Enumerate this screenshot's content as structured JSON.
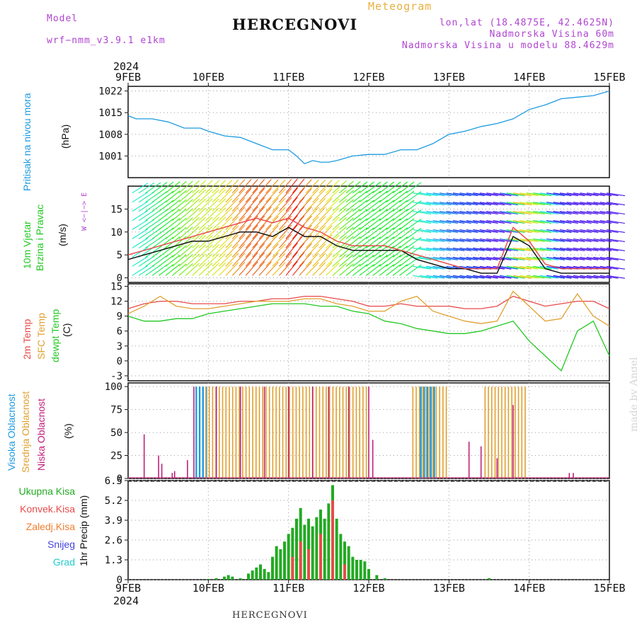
{
  "header": {
    "model_label": "Model",
    "model_value": "wrf−nmm_v3.9.1  e1km",
    "station": "HERCEGNOVI",
    "meteogram": "Meteogram",
    "lonlat": "lon,lat (18.4875E, 42.4625N)",
    "altitude": "Nadmorska Visina 60m",
    "model_altitude": "Nadmorska Visina u modelu 88.4629m",
    "footer_station": "HERCEGNOVI",
    "watermark": "made by Angel"
  },
  "colors": {
    "pressure": "#1e9be0",
    "temp2m": "#e84a4a",
    "sfc": "#e0a030",
    "dew": "#22c822",
    "high_cloud": "#1e9be0",
    "mid_cloud": "#e0a030",
    "low_cloud": "#c0207a",
    "rain_total": "#22aa22",
    "rain_conv": "#e84a4a",
    "rain_frozen": "#f08030",
    "snow": "#4444dd",
    "hail": "#22cccc"
  },
  "chart_data": {
    "type": "line",
    "x_axis": {
      "year": "2024",
      "ticks": [
        "9FEB",
        "10FEB",
        "11FEB",
        "12FEB",
        "13FEB",
        "14FEB",
        "15FEB"
      ],
      "range_days": [
        0,
        6
      ]
    },
    "panels": [
      {
        "id": "pressure",
        "type": "line",
        "ylabel_main": "Pritisak na nivou mora",
        "ylabel_unit": "(hPa)",
        "ylim": [
          994,
          1023.5
        ],
        "yticks": [
          "1001",
          "1008",
          "1015",
          "1022"
        ],
        "ytick_values": [
          1001,
          1008,
          1015,
          1022
        ],
        "series": [
          {
            "x": [
              0,
              0.1,
              0.3,
              0.5,
              0.7,
              0.9,
              1.0,
              1.2,
              1.4,
              1.6,
              1.8,
              2.0,
              2.1,
              2.2,
              2.3,
              2.4,
              2.5,
              2.6,
              2.8,
              3.0,
              3.2,
              3.4,
              3.6,
              3.8,
              4.0,
              4.2,
              4.4,
              4.6,
              4.8,
              5.0,
              5.2,
              5.4,
              5.6,
              5.8,
              6.0
            ],
            "y": [
              1014,
              1013,
              1013,
              1012,
              1010,
              1010,
              1009,
              1007.5,
              1007,
              1005,
              1003,
              1003,
              1001,
              998.5,
              999.5,
              999,
              999,
              999.5,
              1001,
              1001.5,
              1001.5,
              1003,
              1003,
              1005,
              1008,
              1009,
              1010.5,
              1011.5,
              1013,
              1016,
              1017.5,
              1019.5,
              1020,
              1020.5,
              1022
            ]
          }
        ]
      },
      {
        "id": "wind",
        "type": "line",
        "ylabel_main": "10m Vjetar",
        "ylabel_sub": "Brzina i Pravac",
        "ylabel_unit": "(m/s)",
        "compass": "W <−|−> E",
        "ylim": [
          -1,
          20
        ],
        "yticks": [
          "0",
          "5",
          "10",
          "15"
        ],
        "ytick_values": [
          0,
          5,
          10,
          15
        ],
        "series": [
          {
            "name": "speed",
            "x": [
              0,
              0.2,
              0.4,
              0.6,
              0.8,
              1.0,
              1.2,
              1.4,
              1.6,
              1.8,
              2.0,
              2.2,
              2.4,
              2.6,
              2.8,
              3.0,
              3.2,
              3.4,
              3.6,
              3.8,
              4.0,
              4.2,
              4.4,
              4.6,
              4.8,
              5.0,
              5.2,
              5.4,
              5.6,
              5.8,
              6.0
            ],
            "y": [
              4,
              5,
              6,
              7,
              8,
              8,
              9,
              10,
              10,
              9,
              11,
              9,
              9,
              7,
              6,
              6,
              6,
              6,
              4,
              3,
              2,
              2,
              1,
              1,
              9,
              7,
              2,
              1,
              1,
              1,
              1
            ]
          },
          {
            "name": "gust",
            "x": [
              0,
              0.2,
              0.4,
              0.6,
              0.8,
              1.0,
              1.2,
              1.4,
              1.6,
              1.8,
              2.0,
              2.2,
              2.4,
              2.6,
              2.8,
              3.0,
              3.2,
              3.4,
              3.6,
              3.8,
              4.0,
              4.2,
              4.4,
              4.6,
              4.8,
              5.0,
              5.2,
              5.4,
              5.6,
              5.8,
              6.0
            ],
            "y": [
              5,
              6,
              7,
              8,
              9,
              10,
              11,
              12,
              13,
              12,
              13,
              11,
              10,
              8,
              7,
              7,
              7,
              6,
              5,
              4,
              3,
              2,
              2,
              2,
              11,
              8,
              3,
              2,
              2,
              2,
              2
            ]
          }
        ]
      },
      {
        "id": "temperature",
        "type": "line",
        "ylabel_lines": [
          "2m Temp",
          "SFC Temp",
          "dewpt Temp"
        ],
        "ylabel_unit": "(C)",
        "ylim": [
          -4,
          15.5
        ],
        "yticks": [
          "-3",
          "0",
          "3",
          "6",
          "9",
          "12",
          "15"
        ],
        "ytick_values": [
          -3,
          0,
          3,
          6,
          9,
          12,
          15
        ],
        "series": [
          {
            "name": "2m Temp",
            "x": [
              0,
              0.2,
              0.4,
              0.6,
              0.8,
              1.0,
              1.2,
              1.4,
              1.6,
              1.8,
              2.0,
              2.2,
              2.4,
              2.6,
              2.8,
              3.0,
              3.2,
              3.4,
              3.6,
              3.8,
              4.0,
              4.2,
              4.4,
              4.6,
              4.8,
              5.0,
              5.2,
              5.4,
              5.6,
              5.8,
              6.0
            ],
            "y": [
              10.5,
              11.5,
              12,
              12,
              11.5,
              11.5,
              11.5,
              12,
              12,
              12.5,
              12.5,
              13,
              13,
              12.5,
              12,
              11,
              11,
              11.5,
              11,
              11,
              11,
              10.5,
              10.5,
              11,
              13,
              12,
              11,
              11.5,
              12,
              12,
              10.5
            ]
          },
          {
            "name": "SFC Temp",
            "x": [
              0,
              0.2,
              0.4,
              0.6,
              0.8,
              1.0,
              1.2,
              1.4,
              1.6,
              1.8,
              2.0,
              2.2,
              2.4,
              2.6,
              2.8,
              3.0,
              3.2,
              3.4,
              3.6,
              3.8,
              4.0,
              4.2,
              4.4,
              4.6,
              4.8,
              5.0,
              5.2,
              5.4,
              5.6,
              5.8,
              6.0
            ],
            "y": [
              9.5,
              11,
              13,
              11,
              10.5,
              10.5,
              11,
              11.5,
              12,
              12,
              12,
              12.5,
              12.5,
              11.5,
              11,
              10,
              10,
              12,
              13,
              10,
              9,
              8,
              7.5,
              8,
              14,
              11,
              8,
              8.5,
              13.5,
              9,
              7
            ]
          },
          {
            "name": "dewpt Temp",
            "x": [
              0,
              0.2,
              0.4,
              0.6,
              0.8,
              1.0,
              1.2,
              1.4,
              1.6,
              1.8,
              2.0,
              2.2,
              2.4,
              2.6,
              2.8,
              3.0,
              3.2,
              3.4,
              3.6,
              3.8,
              4.0,
              4.2,
              4.4,
              4.6,
              4.8,
              5.0,
              5.2,
              5.4,
              5.6,
              5.8,
              6.0
            ],
            "y": [
              9,
              8,
              8,
              8.5,
              8.5,
              9.5,
              10,
              10.5,
              11,
              11.5,
              11.5,
              11.5,
              11,
              11,
              10,
              9.5,
              8,
              7.5,
              6.5,
              6,
              5.5,
              5.5,
              6,
              7,
              8,
              4,
              1,
              -2,
              6,
              8,
              1
            ]
          }
        ]
      },
      {
        "id": "cloud",
        "type": "bar",
        "ylabel_lines": [
          "Visoka Oblacnost",
          "Srednja Oblacnost",
          "Niska Oblacnost"
        ],
        "ylabel_unit": "(%)",
        "ylim": [
          0,
          104
        ],
        "yticks": [
          "0",
          "25",
          "50",
          "75",
          "100"
        ],
        "ytick_values": [
          0,
          25,
          50,
          75,
          100
        ],
        "series": [
          {
            "name": "Visoka Oblacnost",
            "spans": [
              [
                0.85,
                1.0
              ],
              [
                3.65,
                3.85
              ]
            ]
          },
          {
            "name": "Srednja Oblacnost",
            "spans": [
              [
                0.97,
                3.0
              ],
              [
                3.55,
                4.0
              ],
              [
                4.45,
                4.97
              ]
            ]
          },
          {
            "name": "Niska Oblacnost",
            "points": [
              [
                0.2,
                48
              ],
              [
                0.38,
                25
              ],
              [
                0.42,
                16
              ],
              [
                0.55,
                6
              ],
              [
                0.58,
                8
              ],
              [
                0.74,
                20
              ],
              [
                0.82,
                100
              ],
              [
                1.1,
                100
              ],
              [
                1.4,
                100
              ],
              [
                1.7,
                100
              ],
              [
                2.0,
                100
              ],
              [
                2.3,
                100
              ],
              [
                2.5,
                100
              ],
              [
                2.75,
                100
              ],
              [
                3.0,
                100
              ],
              [
                3.05,
                42
              ],
              [
                4.25,
                40
              ],
              [
                4.4,
                35
              ],
              [
                4.6,
                22
              ],
              [
                4.8,
                80
              ],
              [
                5.5,
                6
              ],
              [
                5.55,
                6
              ]
            ]
          }
        ]
      },
      {
        "id": "precip",
        "type": "bar",
        "ylabel_lines": [
          "Ukupna Kisa",
          "Konvek.Kisa",
          "Zaledj.Kisa",
          "Snijeg",
          "Grad"
        ],
        "ylabel_unit": "1hr Precip (mm)",
        "ylim": [
          0,
          6.5
        ],
        "yticks": [
          "0",
          "1.3",
          "2.6",
          "3.9",
          "5.2",
          "6.5"
        ],
        "ytick_values": [
          0,
          1.3,
          2.6,
          3.9,
          5.2,
          6.5
        ],
        "series": [
          {
            "name": "Ukupna Kisa",
            "x": [
              1.0,
              1.1,
              1.2,
              1.25,
              1.3,
              1.4,
              1.5,
              1.55,
              1.6,
              1.65,
              1.7,
              1.75,
              1.8,
              1.85,
              1.9,
              1.95,
              2.0,
              2.05,
              2.1,
              2.15,
              2.2,
              2.25,
              2.3,
              2.35,
              2.4,
              2.45,
              2.5,
              2.55,
              2.6,
              2.65,
              2.7,
              2.75,
              2.8,
              2.85,
              2.9,
              2.95,
              3.0,
              3.1,
              3.2,
              4.5
            ],
            "y": [
              0.05,
              0.1,
              0.2,
              0.3,
              0.2,
              0.1,
              0.4,
              0.6,
              0.8,
              1.0,
              0.7,
              0.5,
              1.5,
              2.2,
              2.0,
              2.5,
              3.0,
              3.4,
              4.0,
              4.7,
              3.6,
              4.0,
              3.5,
              4.1,
              4.6,
              4.0,
              5.0,
              6.2,
              4.0,
              3.0,
              2.5,
              2.2,
              1.5,
              1.3,
              1.3,
              1.2,
              0.7,
              0.3,
              0.1,
              0.1
            ]
          },
          {
            "name": "Konvek.Kisa",
            "x": [
              2.05,
              2.15,
              2.25,
              2.4,
              2.55,
              2.7
            ],
            "y": [
              1.5,
              2.5,
              2.0,
              3.0,
              5.2,
              1.0
            ]
          }
        ]
      }
    ]
  }
}
